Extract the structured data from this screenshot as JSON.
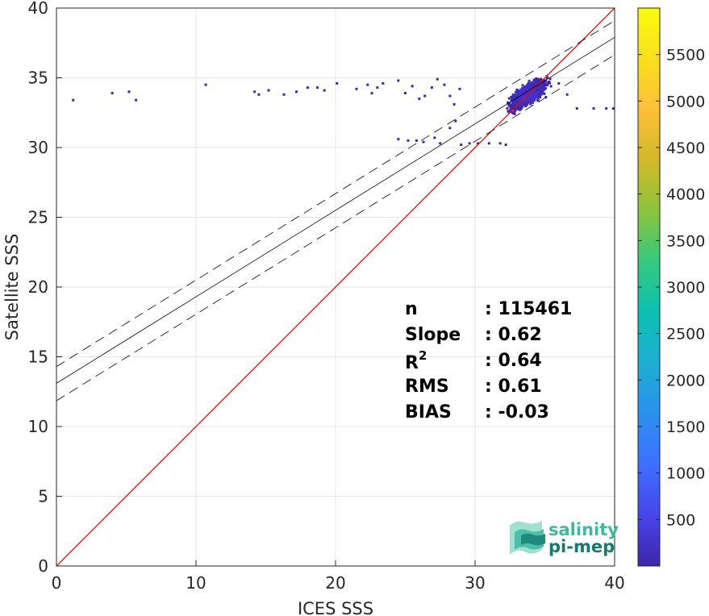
{
  "chart_data": {
    "type": "scatter",
    "subtype": "density-scatter",
    "xlabel": "ICES SSS",
    "ylabel": "Satellite SSS",
    "xlim": [
      0,
      40
    ],
    "ylim": [
      0,
      40
    ],
    "x_ticks": [
      0,
      10,
      20,
      30,
      40
    ],
    "y_ticks": [
      0,
      5,
      10,
      15,
      20,
      25,
      30,
      35,
      40
    ],
    "grid": true,
    "colorbar": {
      "range": [
        0,
        6000
      ],
      "ticks": [
        500,
        1000,
        1500,
        2000,
        2500,
        3000,
        3500,
        4000,
        4500,
        5000,
        5500
      ],
      "colormap": "parula",
      "colors": [
        "#3e26a8",
        "#4746eb",
        "#3e6ffe",
        "#2b91ef",
        "#1daed2",
        "#0cc0b1",
        "#36c87e",
        "#8bc43c",
        "#d2b92a",
        "#fdbf3a",
        "#f9e01c",
        "#f9fb0e"
      ]
    },
    "lines": [
      {
        "type": "one-to-one",
        "slope": 1.0,
        "intercept": 0.0,
        "color": "#ff0000",
        "style": "solid"
      },
      {
        "type": "regression",
        "slope": 0.62,
        "intercept": 13.1,
        "color": "#000000",
        "style": "solid"
      },
      {
        "type": "regression-upper",
        "slope": 0.62,
        "intercept": 14.3,
        "color": "#000000",
        "style": "dashed"
      },
      {
        "type": "regression-lower",
        "slope": 0.62,
        "intercept": 11.85,
        "color": "#000000",
        "style": "dashed"
      }
    ],
    "point_color": "#3e26a8",
    "density_cluster": {
      "x_range": [
        30.0,
        35.6
      ],
      "y_range": [
        30.7,
        35.9
      ],
      "density_peak": [
        33.8,
        33.8
      ]
    },
    "sparse_points": [
      [
        1.2,
        33.4
      ],
      [
        4.0,
        33.9
      ],
      [
        5.2,
        34.0
      ],
      [
        5.7,
        33.4
      ],
      [
        10.7,
        34.5
      ],
      [
        14.2,
        34.0
      ],
      [
        14.5,
        33.8
      ],
      [
        15.2,
        34.1
      ],
      [
        16.3,
        33.8
      ],
      [
        17.2,
        34.0
      ],
      [
        18.0,
        34.3
      ],
      [
        18.7,
        34.3
      ],
      [
        19.2,
        34.1
      ],
      [
        20.1,
        34.6
      ],
      [
        21.5,
        34.2
      ],
      [
        22.3,
        34.5
      ],
      [
        22.6,
        33.9
      ],
      [
        23.0,
        34.3
      ],
      [
        23.4,
        34.6
      ],
      [
        24.5,
        34.8
      ],
      [
        25.0,
        33.9
      ],
      [
        25.5,
        34.4
      ],
      [
        26.0,
        33.5
      ],
      [
        26.4,
        33.7
      ],
      [
        26.9,
        34.3
      ],
      [
        27.3,
        34.9
      ],
      [
        27.8,
        34.5
      ],
      [
        28.2,
        33.7
      ],
      [
        28.5,
        33.1
      ],
      [
        28.9,
        34.2
      ],
      [
        24.5,
        30.6
      ],
      [
        25.2,
        30.5
      ],
      [
        25.8,
        30.5
      ],
      [
        26.3,
        30.4
      ],
      [
        27.1,
        30.7
      ],
      [
        27.5,
        30.3
      ],
      [
        28.2,
        31.4
      ],
      [
        28.6,
        31.9
      ],
      [
        29.0,
        30.2
      ],
      [
        29.6,
        30.3
      ],
      [
        30.2,
        30.3
      ],
      [
        31.0,
        30.3
      ],
      [
        31.8,
        30.3
      ],
      [
        32.2,
        30.2
      ],
      [
        36.0,
        34.6
      ],
      [
        36.6,
        33.8
      ],
      [
        37.3,
        32.8
      ],
      [
        38.5,
        32.8
      ],
      [
        39.4,
        32.8
      ],
      [
        39.9,
        32.8
      ]
    ],
    "annotations": [
      {
        "label": "n",
        "value": ": 115461"
      },
      {
        "label": "Slope",
        "value": ": 0.62"
      },
      {
        "label": "R",
        "superscript": "2",
        "value": ": 0.64"
      },
      {
        "label": "RMS",
        "value": ": 0.61"
      },
      {
        "label": "BIAS",
        "value": ": -0.03"
      }
    ]
  },
  "logo": {
    "line1": "salinity",
    "line2": "pi-mep",
    "colors": {
      "line1": "#3fb89b",
      "line2": "#157a72"
    }
  }
}
